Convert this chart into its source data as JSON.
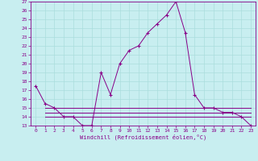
{
  "xlabel": "Windchill (Refroidissement éolien,°C)",
  "bg_color": "#c8eef0",
  "grid_color": "#aadddd",
  "line_color": "#880088",
  "xlim": [
    -0.5,
    23.5
  ],
  "ylim": [
    13,
    27
  ],
  "yticks": [
    13,
    14,
    15,
    16,
    17,
    18,
    19,
    20,
    21,
    22,
    23,
    24,
    25,
    26,
    27
  ],
  "xticks": [
    0,
    1,
    2,
    3,
    4,
    5,
    6,
    7,
    8,
    9,
    10,
    11,
    12,
    13,
    14,
    15,
    16,
    17,
    18,
    19,
    20,
    21,
    22,
    23
  ],
  "main_line": {
    "x": [
      0,
      1,
      2,
      3,
      4,
      5,
      6,
      7,
      8,
      9,
      10,
      11,
      12,
      13,
      14,
      15,
      16,
      17,
      18,
      19,
      20,
      21,
      22,
      23
    ],
    "y": [
      17.5,
      15.5,
      15.0,
      14.0,
      14.0,
      13.0,
      13.0,
      19.0,
      16.5,
      20.0,
      21.5,
      22.0,
      23.5,
      24.5,
      25.5,
      27.0,
      23.5,
      16.5,
      15.0,
      15.0,
      14.5,
      14.5,
      14.0,
      13.0
    ]
  },
  "flat_line1": {
    "x": [
      1,
      2,
      3,
      4,
      5,
      6,
      7,
      8,
      9,
      10,
      11,
      12,
      13,
      14,
      15,
      16,
      17,
      18,
      19,
      20,
      21,
      22,
      23
    ],
    "y": [
      15.0,
      15.0,
      15.0,
      15.0,
      15.0,
      15.0,
      15.0,
      15.0,
      15.0,
      15.0,
      15.0,
      15.0,
      15.0,
      15.0,
      15.0,
      15.0,
      15.0,
      15.0,
      15.0,
      15.0,
      15.0,
      15.0,
      15.0
    ]
  },
  "flat_line2": {
    "x": [
      1,
      2,
      3,
      4,
      5,
      6,
      7,
      8,
      9,
      10,
      11,
      12,
      13,
      14,
      15,
      16,
      17,
      18,
      19,
      20,
      21,
      22,
      23
    ],
    "y": [
      14.5,
      14.5,
      14.5,
      14.5,
      14.5,
      14.5,
      14.5,
      14.5,
      14.5,
      14.5,
      14.5,
      14.5,
      14.5,
      14.5,
      14.5,
      14.5,
      14.5,
      14.5,
      14.5,
      14.5,
      14.5,
      14.5,
      14.5
    ]
  },
  "flat_line3": {
    "x": [
      1,
      2,
      3,
      4,
      5,
      6,
      7,
      8,
      9,
      10,
      11,
      12,
      13,
      14,
      15,
      16,
      17,
      18,
      19,
      20,
      21,
      22,
      23
    ],
    "y": [
      14.0,
      14.0,
      14.0,
      14.0,
      14.0,
      14.0,
      14.0,
      14.0,
      14.0,
      14.0,
      14.0,
      14.0,
      14.0,
      14.0,
      14.0,
      14.0,
      14.0,
      14.0,
      14.0,
      14.0,
      14.0,
      14.0,
      14.0
    ]
  }
}
